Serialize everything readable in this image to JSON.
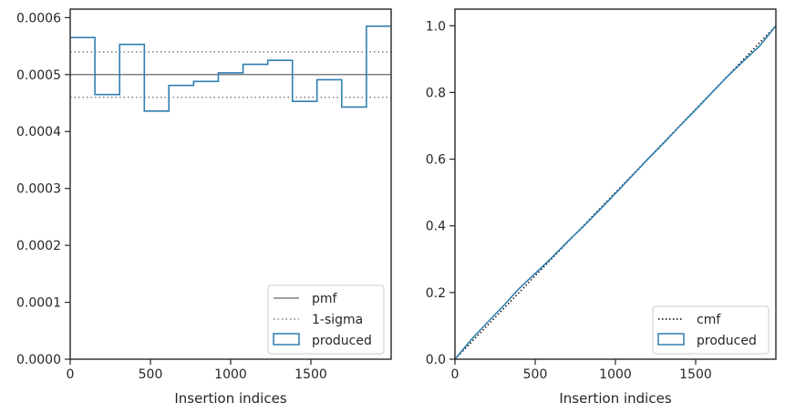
{
  "colors": {
    "produced": "#2f7fb0",
    "pmf": "#808080",
    "sigma": "#808080",
    "cmf": "#000000",
    "frame": "#262626"
  },
  "chart_data": [
    {
      "type": "line",
      "subtype": "step-histogram",
      "title": "",
      "xlabel": "Insertion indices",
      "ylabel": "",
      "xlim": [
        0,
        2000
      ],
      "ylim": [
        0,
        0.000615
      ],
      "xticks": [
        0,
        500,
        1000,
        1500
      ],
      "xtick_labels": [
        "0",
        "500",
        "1000",
        "1500"
      ],
      "yticks": [
        0,
        0.0001,
        0.0002,
        0.0003,
        0.0004,
        0.0005,
        0.0006
      ],
      "ytick_labels": [
        "0.0000",
        "0.0001",
        "0.0002",
        "0.0003",
        "0.0004",
        "0.0005",
        "0.0006"
      ],
      "grid": false,
      "legend_position": "lower-right",
      "bin_edges": [
        0,
        154,
        308,
        462,
        615,
        769,
        923,
        1077,
        1231,
        1385,
        1538,
        1692,
        1846,
        2000
      ],
      "series": [
        {
          "name": "pmf",
          "style": "solid",
          "y": 0.0005
        },
        {
          "name": "1-sigma",
          "style": "dotted",
          "y": [
            0.00046,
            0.00054
          ]
        },
        {
          "name": "produced",
          "style": "step",
          "values": [
            0.000565,
            0.000465,
            0.000553,
            0.000436,
            0.000481,
            0.000488,
            0.000503,
            0.000518,
            0.000525,
            0.000453,
            0.000491,
            0.000443,
            0.000585
          ]
        }
      ],
      "legend": [
        "pmf",
        "1-sigma",
        "produced"
      ]
    },
    {
      "type": "line",
      "title": "",
      "xlabel": "Insertion indices",
      "ylabel": "",
      "xlim": [
        0,
        2000
      ],
      "ylim": [
        0,
        1.05
      ],
      "xticks": [
        0,
        500,
        1000,
        1500
      ],
      "xtick_labels": [
        "0",
        "500",
        "1000",
        "1500"
      ],
      "yticks": [
        0,
        0.2,
        0.4,
        0.6,
        0.8,
        1.0
      ],
      "ytick_labels": [
        "0.0",
        "0.2",
        "0.4",
        "0.6",
        "0.8",
        "1.0"
      ],
      "grid": false,
      "legend_position": "lower-right",
      "series": [
        {
          "name": "cmf",
          "style": "dotted",
          "x": [
            0,
            2000
          ],
          "y": [
            0,
            1.0
          ]
        },
        {
          "name": "produced",
          "style": "solid",
          "x": [
            0,
            100,
            200,
            300,
            400,
            500,
            600,
            700,
            800,
            900,
            1000,
            1100,
            1200,
            1300,
            1400,
            1500,
            1600,
            1700,
            1800,
            1900,
            2000
          ],
          "y": [
            0,
            0.058,
            0.109,
            0.159,
            0.212,
            0.257,
            0.303,
            0.352,
            0.398,
            0.447,
            0.497,
            0.548,
            0.599,
            0.648,
            0.699,
            0.748,
            0.799,
            0.849,
            0.895,
            0.94,
            1.0
          ]
        }
      ],
      "legend": [
        "cmf",
        "produced"
      ]
    }
  ]
}
